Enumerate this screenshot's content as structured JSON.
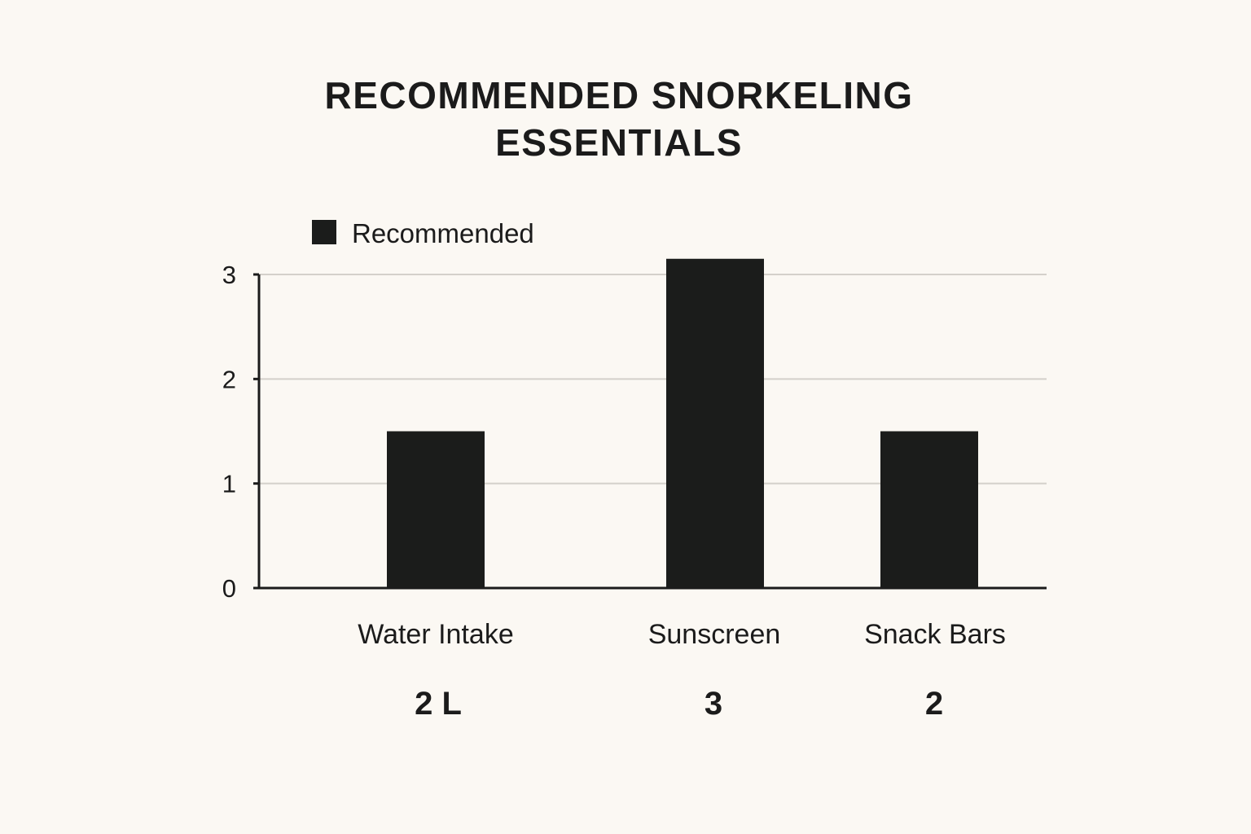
{
  "chart_data": {
    "type": "bar",
    "title": "RECOMMENDED SNORKELING ESSENTIALS",
    "title_lines": [
      "RECOMMENDED SNORKELING",
      "ESSENTIALS"
    ],
    "categories": [
      "Water Intake",
      "Sunscreen",
      "Snack Bars"
    ],
    "series": [
      {
        "name": "Recommended",
        "values": [
          1.5,
          3.15,
          1.5
        ]
      }
    ],
    "value_labels": [
      "2 L",
      "3",
      "2"
    ],
    "xlabel": "",
    "ylabel": "",
    "ylim": [
      0,
      3
    ],
    "yticks": [
      0,
      1,
      2,
      3
    ],
    "grid": true,
    "legend": "top-left",
    "colors": {
      "bar": "#1b1c1b",
      "grid": "#d4d0ca",
      "axis": "#1b1b1b",
      "background": "#fbf8f3"
    }
  }
}
